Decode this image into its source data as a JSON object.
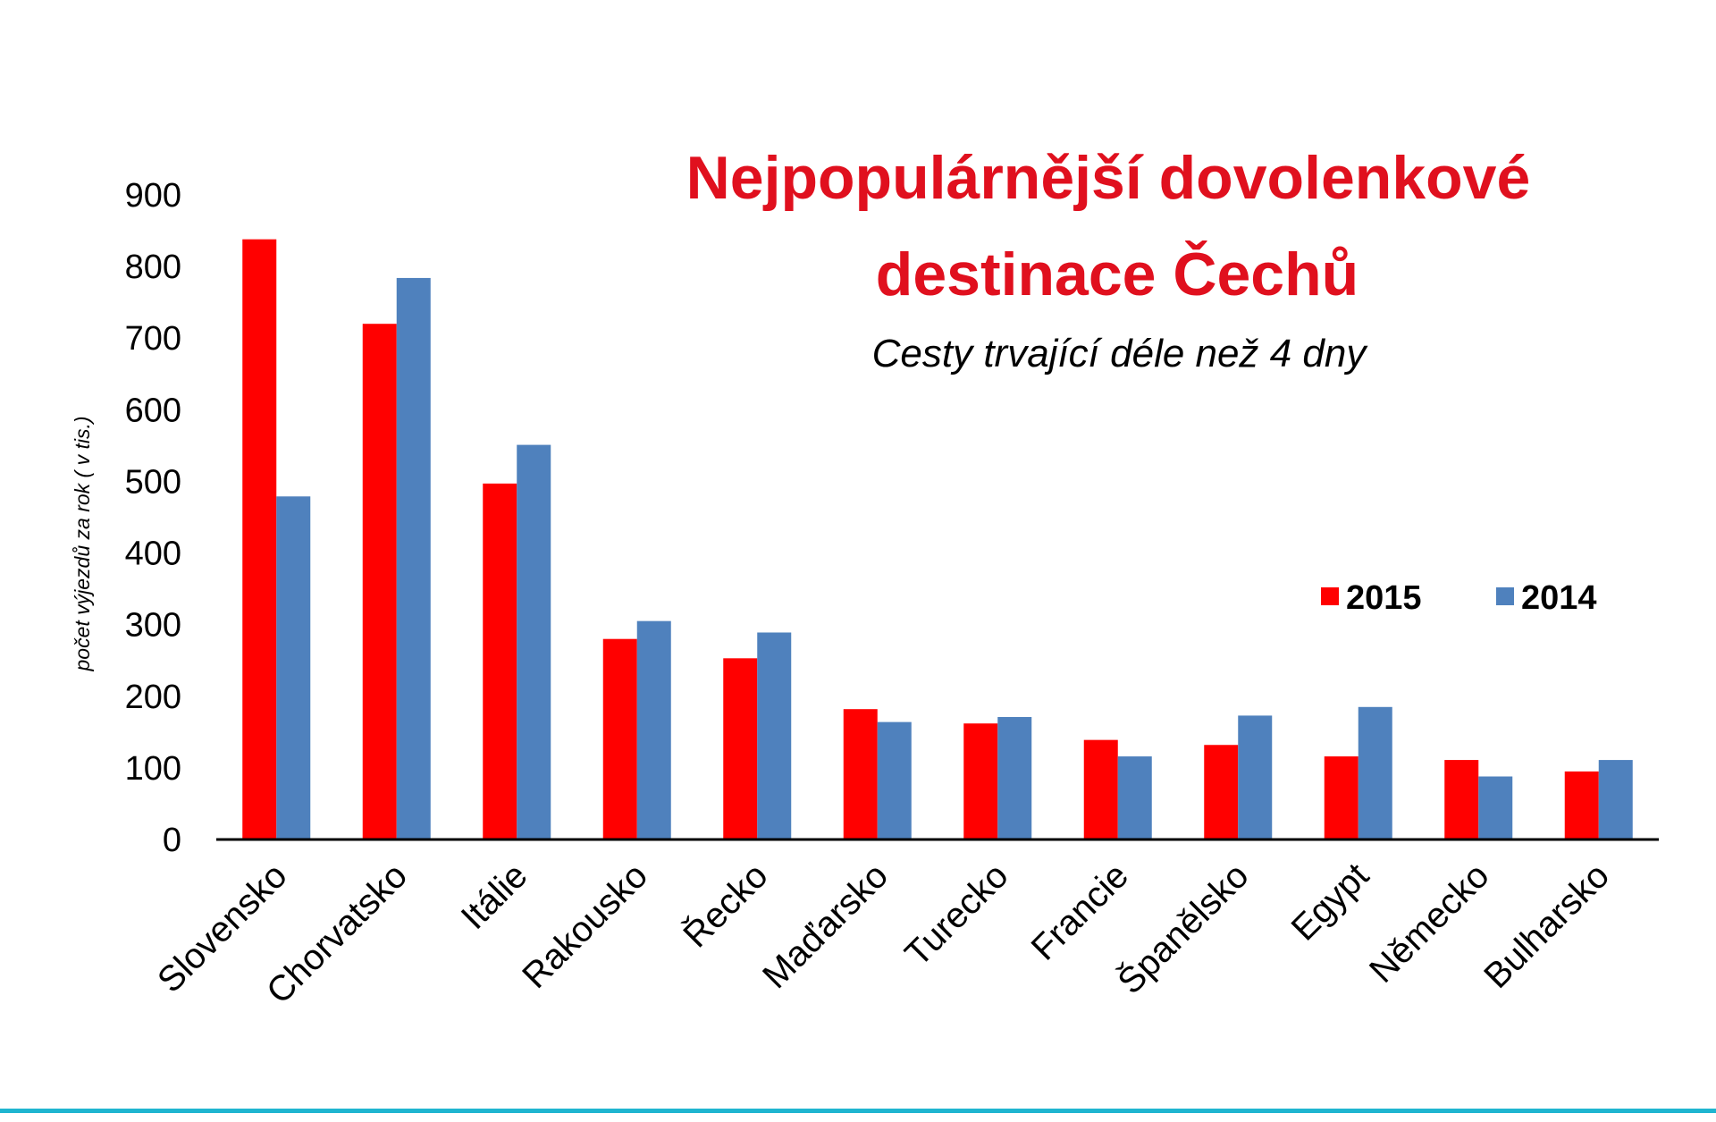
{
  "colors": {
    "series_2015": "#FF0000",
    "series_2014": "#4F81BD",
    "title": "#E0101E",
    "axis": "#000000",
    "bottom_rule": "#1FB5D0"
  },
  "chart_data": {
    "type": "bar",
    "title_lines": [
      "Nejpopulárnější dovolenkové",
      "destinace Čechů"
    ],
    "subtitle": "Cesty trvající déle než 4 dny",
    "xlabel": "",
    "ylabel": "počet výjezdů za rok ( v tis.)",
    "ylim": [
      0,
      900
    ],
    "yticks": [
      "0",
      "100",
      "200",
      "300",
      "400",
      "500",
      "600",
      "700",
      "800",
      "900"
    ],
    "grid": false,
    "legend_position": "right",
    "categories": [
      "Slovensko",
      "Chorvatsko",
      "Itálie",
      "Rakousko",
      "Řecko",
      "Maďarsko",
      "Turecko",
      "Francie",
      "Španělsko",
      "Egypt",
      "Německo",
      "Bulharsko"
    ],
    "series": [
      {
        "name": "2015",
        "values": [
          838,
          720,
          497,
          280,
          253,
          182,
          162,
          139,
          132,
          116,
          111,
          95
        ]
      },
      {
        "name": "2014",
        "values": [
          479,
          784,
          551,
          305,
          289,
          164,
          171,
          116,
          173,
          185,
          88,
          111
        ]
      }
    ]
  }
}
